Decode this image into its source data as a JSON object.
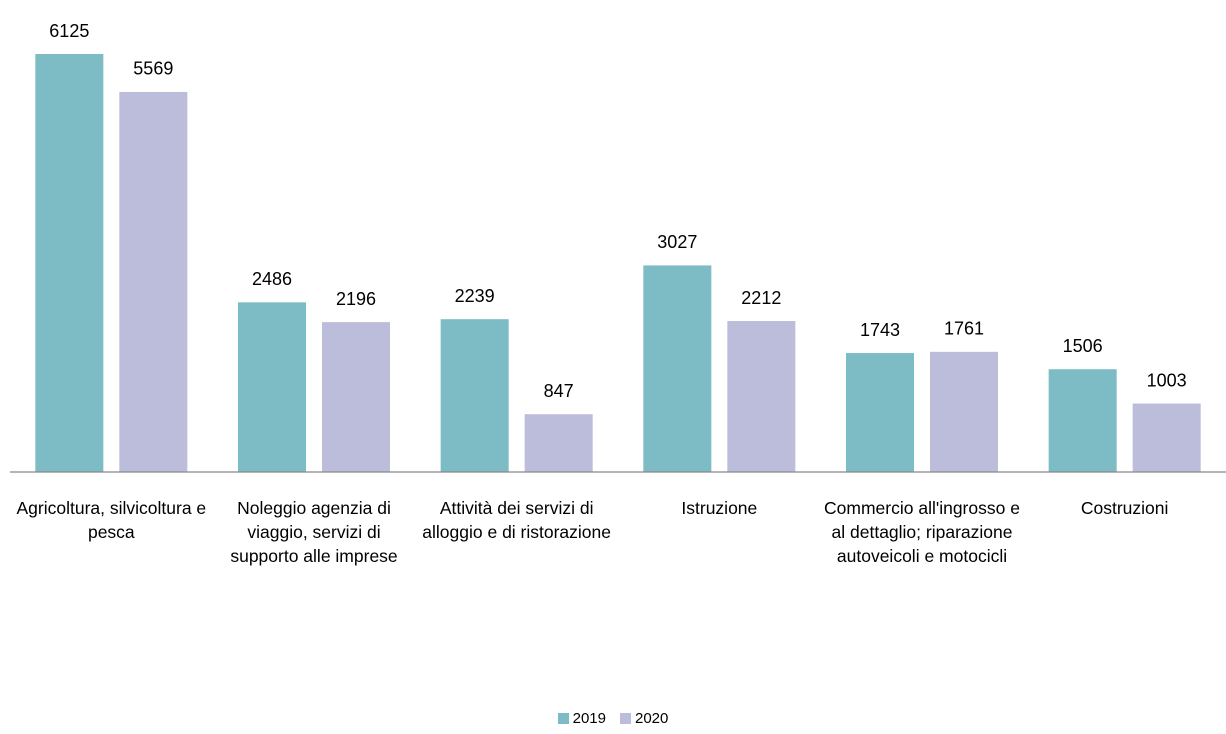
{
  "chart_data": {
    "type": "bar",
    "categories": [
      "Agricoltura, silvicoltura e pesca",
      "Noleggio agenzia di viaggio, servizi di supporto alle imprese",
      "Attività dei servizi di alloggio e di ristorazione",
      "Istruzione",
      "Commercio all'ingrosso e al dettaglio; riparazione autoveicoli e motocicli",
      "Costruzioni"
    ],
    "series": [
      {
        "name": "2019",
        "color": "#7dbcc4",
        "values": [
          6125,
          2486,
          2239,
          3027,
          1743,
          1506
        ]
      },
      {
        "name": "2020",
        "color": "#bcbcdb",
        "values": [
          5569,
          2196,
          847,
          2212,
          1761,
          1003
        ]
      }
    ],
    "legend": "bottom"
  }
}
